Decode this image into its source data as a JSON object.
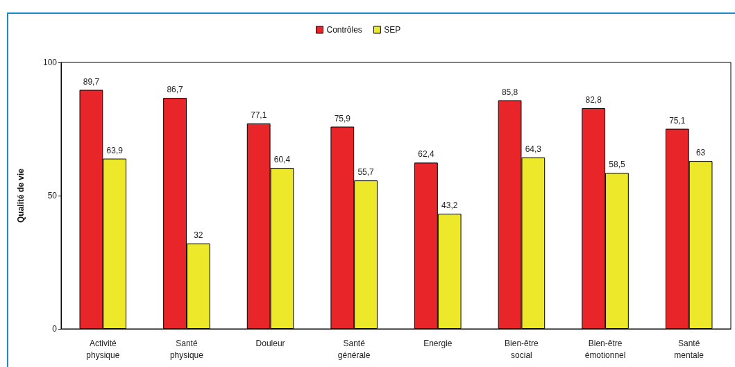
{
  "chart_data": {
    "type": "bar",
    "ylabel": "Qualité de vie",
    "categories": [
      "Activité physique",
      "Santé physique",
      "Douleur",
      "Santé générale",
      "Energie",
      "Bien-être social",
      "Bien-être émotionnel",
      "Santé mentale"
    ],
    "series": [
      {
        "name": "Contrôles",
        "color": "#e8262a",
        "values": [
          89.7,
          86.7,
          77.1,
          75.9,
          62.4,
          85.8,
          82.8,
          75.1
        ],
        "value_labels": [
          "89,7",
          "86,7",
          "77,1",
          "75,9",
          "62,4",
          "85,8",
          "82,8",
          "75,1"
        ]
      },
      {
        "name": "SEP",
        "color": "#eee82a",
        "values": [
          63.9,
          32,
          60.4,
          55.7,
          43.2,
          64.3,
          58.5,
          63
        ],
        "value_labels": [
          "63,9",
          "32",
          "60,4",
          "55,7",
          "43,2",
          "64,3",
          "58,5",
          "63"
        ]
      }
    ],
    "ylim": [
      0,
      100
    ],
    "yticks": [
      0,
      50,
      100
    ],
    "grid": false,
    "legend": "top"
  }
}
